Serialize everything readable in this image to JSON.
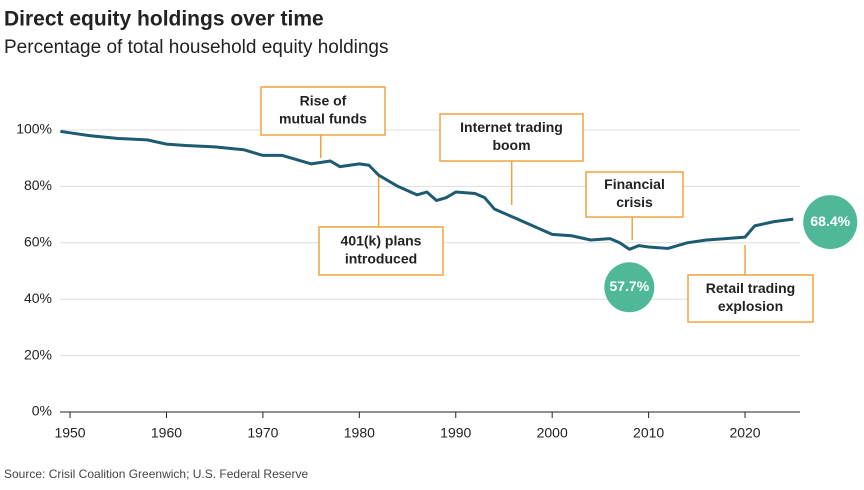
{
  "chart_data": {
    "type": "line",
    "title": "Direct equity holdings over time",
    "subtitle": "Percentage of total household equity holdings",
    "source": "Source: Crisil Coalition Greenwich; U.S. Federal Reserve",
    "x": [
      1949,
      1950,
      1952,
      1955,
      1958,
      1960,
      1962,
      1965,
      1968,
      1970,
      1972,
      1974,
      1975,
      1977,
      1978,
      1980,
      1981,
      1982,
      1984,
      1986,
      1987,
      1988,
      1989,
      1990,
      1992,
      1993,
      1994,
      1996,
      1998,
      2000,
      2002,
      2004,
      2006,
      2007,
      2008,
      2009,
      2010,
      2012,
      2014,
      2016,
      2018,
      2020,
      2021,
      2023,
      2025
    ],
    "values": [
      99.5,
      99,
      98,
      97,
      96.5,
      95,
      94.5,
      94,
      93,
      91,
      91,
      89,
      88,
      89,
      87,
      88,
      87.5,
      84,
      80,
      77,
      78,
      75,
      76,
      78,
      77.5,
      76,
      72,
      69,
      66,
      63,
      62.5,
      61,
      61.5,
      60,
      57.7,
      59,
      58.5,
      58,
      60,
      61,
      61.5,
      62,
      66,
      67.5,
      68.4
    ],
    "value_labels": [
      null,
      null,
      null,
      null,
      null,
      null,
      null,
      null,
      null,
      null,
      null,
      null,
      null,
      null,
      null,
      null,
      null,
      null,
      null,
      null,
      null,
      null,
      null,
      null,
      null,
      null,
      null,
      null,
      null,
      null,
      null,
      null,
      null,
      null,
      "57.7%",
      null,
      null,
      null,
      null,
      null,
      null,
      null,
      null,
      null,
      "68.4%"
    ],
    "color": "#1d5b73",
    "badge_color": "#4fb899",
    "annotation_color": "#f0a23e",
    "xlim": [
      1949,
      2026
    ],
    "ylim": [
      0,
      100
    ],
    "xticks": [
      1950,
      1960,
      1970,
      1980,
      1990,
      2000,
      2010,
      2020
    ],
    "yticks": [
      {
        "value": 0,
        "label": "0%"
      },
      {
        "value": 20,
        "label": "20%"
      },
      {
        "value": 40,
        "label": "40%"
      },
      {
        "value": 60,
        "label": "60%"
      },
      {
        "value": 80,
        "label": "80%"
      },
      {
        "value": 100,
        "label": "100%"
      }
    ],
    "grid": true,
    "annotations": [
      {
        "x": 1976,
        "lines": [
          "Rise of",
          "mutual funds"
        ]
      },
      {
        "x": 1982,
        "lines": [
          "401(k) plans",
          "introduced"
        ]
      },
      {
        "x": 1995.8,
        "lines": [
          "Internet trading",
          "boom"
        ]
      },
      {
        "x": 2008.3,
        "lines": [
          "Financial",
          "crisis"
        ]
      },
      {
        "x": 2020,
        "lines": [
          "Retail trading",
          "explosion"
        ]
      }
    ]
  }
}
